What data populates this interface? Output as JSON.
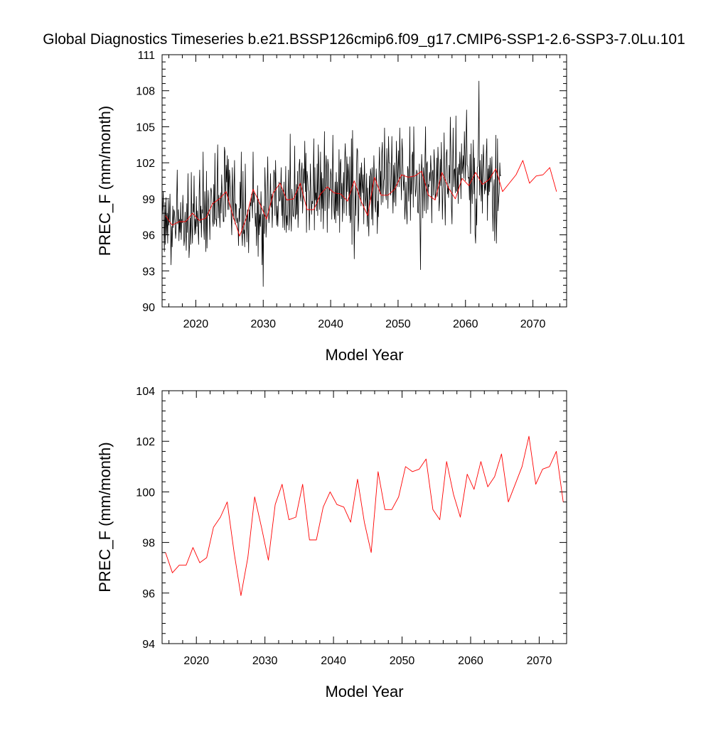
{
  "title": "Global Diagnostics Timeseries b.e21.BSSP126cmip6.f09_g17.CMIP6-SSP1-2.6-SSP3-7.0Lu.101",
  "colors": {
    "monthly": "#000000",
    "annual": "#ff0000",
    "axis": "#000000"
  },
  "chart_data": [
    {
      "type": "line",
      "xlabel": "Model Year",
      "ylabel": "PREC_F (mm/month)",
      "xlim": [
        2015,
        2075
      ],
      "ylim": [
        90,
        111
      ],
      "xticks": [
        2020,
        2030,
        2040,
        2050,
        2060,
        2070
      ],
      "yticks": [
        90,
        93,
        96,
        99,
        102,
        105,
        108,
        111
      ],
      "grid": false,
      "series": [
        {
          "line_color": "#000000",
          "resolution": "monthly",
          "x_start": 2015.0,
          "x_step": 0.0833333,
          "values": [
            97.5,
            98.2,
            99.6,
            96.9,
            94.6,
            98.7,
            95.2,
            99.1,
            96.0,
            97.8,
            95.3,
            98.9,
            96.8,
            97.6,
            99.4,
            96.1,
            93.5,
            96.7,
            95.0,
            98.4,
            96.6,
            98.1,
            97.9,
            97.0,
            95.7,
            96.4,
            98.9,
            101.4,
            96.9,
            98.1,
            95.5,
            97.3,
            96.2,
            98.7,
            95.6,
            97.3,
            97.0,
            99.3,
            97.5,
            95.1,
            95.6,
            97.9,
            96.3,
            94.7,
            98.6,
            96.2,
            101.1,
            97.7,
            94.1,
            95.2,
            97.4,
            95.2,
            101.2,
            96.8,
            95.3,
            98.6,
            97.9,
            100.9,
            96.0,
            97.3,
            96.1,
            99.2,
            96.7,
            98.0,
            96.4,
            95.2,
            99.7,
            101.4,
            97.0,
            98.4,
            95.8,
            98.1,
            97.8,
            102.9,
            96.7,
            95.6,
            99.6,
            97.7,
            94.6,
            101.3,
            94.9,
            98.2,
            99.7,
            97.6,
            97.7,
            95.6,
            99.5,
            99.9,
            99.6,
            98.4,
            97.2,
            96.7,
            100.2,
            96.9,
            102.8,
            97.3,
            97.3,
            96.7,
            100.5,
            103.5,
            97.4,
            99.3,
            98.0,
            96.6,
            99.5,
            97.8,
            101.0,
            99.4,
            98.6,
            97.1,
            97.1,
            103.3,
            102.9,
            97.5,
            101.8,
            100.4,
            102.6,
            98.1,
            102.3,
            98.1,
            101.4,
            100.7,
            99.9,
            97.4,
            96.0,
            101.6,
            99.4,
            97.3,
            100.1,
            102.2,
            96.9,
            98.6,
            98.5,
            97.0,
            97.4,
            96.9,
            95.1,
            98.2,
            97.1,
            100.4,
            98.2,
            102.9,
            96.0,
            95.1,
            101.3,
            96.1,
            96.4,
            95.0,
            101.9,
            97.7,
            97.5,
            95.4,
            98.1,
            97.1,
            94.5,
            98.1,
            97.1,
            98.7,
            98.4,
            99.4,
            98.7,
            97.4,
            102.9,
            98.7,
            99.5,
            98.4,
            96.7,
            97.8,
            95.1,
            97.8,
            100.1,
            94.2,
            99.0,
            96.0,
            97.7,
            96.7,
            99.6,
            97.7,
            93.5,
            97.7,
            91.7,
            98.4,
            96.1,
            101.6,
            99.6,
            95.8,
            97.1,
            99.7,
            102.5,
            98.3,
            97.0,
            97.5,
            99.0,
            101.1,
            98.3,
            99.4,
            96.6,
            98.7,
            100.1,
            101.4,
            101.1,
            97.6,
            102.2,
            99.7,
            96.8,
            98.4,
            96.7,
            98.5,
            100.4,
            98.8,
            98.9,
            99.6,
            101.6,
            97.6,
            99.7,
            96.6,
            99.1,
            100.4,
            96.4,
            97.9,
            101.7,
            96.2,
            97.6,
            96.8,
            99.0,
            101.4,
            96.4,
            98.0,
            104.4,
            97.8,
            96.3,
            99.8,
            99.1,
            97.6,
            97.5,
            98.9,
            103.4,
            97.3,
            97.7,
            100.2,
            97.7,
            101.3,
            96.6,
            98.3,
            101.8,
            102.3,
            99.3,
            98.8,
            101.3,
            102.0,
            97.8,
            99.2,
            101.5,
            100.3,
            103.8,
            99.6,
            102.8,
            96.2,
            101.3,
            100.8,
            99.8,
            99.6,
            96.4,
            98.3,
            101.9,
            99.6,
            97.7,
            98.8,
            98.6,
            100.7,
            104.0,
            96.4,
            101.6,
            98.9,
            99.5,
            98.0,
            101.9,
            97.6,
            103.5,
            101.4,
            98.1,
            99.5,
            102.9,
            97.1,
            101.2,
            98.2,
            100.7,
            96.5,
            100.5,
            104.6,
            98.0,
            101.1,
            102.6,
            100.7,
            96.2,
            102.3,
            101.8,
            98.2,
            99.9,
            99.7,
            101.5,
            101.0,
            97.3,
            100.2,
            104.3,
            100.0,
            98.0,
            97.3,
            100.4,
            97.0,
            101.2,
            98.0,
            100.4,
            97.6,
            98.9,
            103.1,
            96.2,
            101.9,
            102.3,
            99.0,
            100.3,
            97.1,
            99.8,
            101.2,
            97.8,
            102.1,
            103.6,
            101.8,
            97.6,
            102.5,
            99.6,
            101.9,
            101.0,
            97.6,
            102.5,
            97.0,
            97.4,
            104.0,
            95.2,
            104.7,
            100.4,
            98.8,
            94.0,
            97.7,
            100.1,
            97.6,
            101.4,
            103.2,
            103.0,
            96.3,
            97.4,
            101.1,
            99.2,
            101.6,
            98.4,
            102.0,
            100.5,
            99.5,
            101.0,
            96.9,
            102.4,
            100.4,
            98.4,
            99.2,
            101.1,
            96.7,
            99.9,
            97.4,
            95.9,
            100.9,
            98.9,
            101.5,
            101.0,
            97.3,
            101.6,
            96.8,
            99.6,
            102.6,
            100.6,
            98.5,
            97.9,
            101.5,
            100.5,
            96.1,
            98.8,
            97.5,
            101.3,
            103.3,
            99.4,
            101.3,
            98.5,
            102.8,
            103.7,
            98.7,
            100.4,
            100.7,
            104.9,
            100.2,
            99.4,
            98.9,
            103.2,
            101.3,
            98.2,
            104.2,
            102.0,
            102.0,
            99.8,
            99.3,
            101.1,
            104.2,
            100.0,
            97.8,
            101.8,
            98.7,
            102.0,
            100.1,
            98.4,
            103.8,
            102.1,
            100.0,
            101.6,
            103.0,
            100.0,
            104.9,
            101.9,
            100.7,
            98.9,
            104.0,
            103.0,
            101.0,
            99.7,
            101.0,
            97.3,
            98.5,
            100.4,
            98.1,
            96.9,
            101.7,
            101.4,
            98.8,
            100.5,
            105.0,
            97.2,
            100.8,
            99.4,
            102.6,
            102.9,
            98.3,
            105.0,
            101.5,
            100.7,
            99.2,
            99.8,
            101.4,
            101.2,
            97.9,
            97.8,
            99.6,
            101.9,
            97.2,
            93.1,
            99.7,
            102.7,
            101.1,
            97.4,
            101.6,
            100.7,
            98.0,
            102.4,
            105.0,
            97.8,
            101.9,
            102.1,
            98.1,
            100.2,
            100.0,
            101.2,
            100.5,
            102.6,
            101.4,
            97.0,
            101.2,
            101.4,
            99.3,
            103.1,
            101.8,
            98.9,
            99.4,
            100.1,
            102.4,
            99.2,
            103.3,
            101.9,
            98.0,
            98.9,
            102.3,
            100.1,
            103.7,
            100.5,
            97.3,
            99.8,
            100.5,
            104.5,
            99.4,
            96.8,
            101.3,
            102.8,
            103.1,
            99.4,
            99.9,
            99.1,
            101.8,
            100.3,
            105.8,
            103.0,
            98.3,
            96.9,
            101.5,
            104.9,
            100.0,
            101.4,
            101.5,
            99.5,
            105.9,
            99.7,
            99.6,
            101.6,
            98.6,
            101.9,
            101.0,
            102.9,
            101.6,
            99.0,
            103.6,
            101.1,
            101.7,
            102.6,
            100.7,
            104.6,
            102.6,
            100.5,
            103.7,
            106.4,
            101.8,
            101.7,
            100.7,
            100.8,
            98.9,
            102.7,
            96.1,
            103.6,
            100.3,
            98.6,
            101.2,
            103.9,
            99.4,
            102.4,
            96.1,
            95.3,
            99.0,
            96.8,
            101.6,
            101.7,
            103.9,
            108.8,
            99.3,
            102.2,
            100.6,
            98.8,
            102.7,
            97.8,
            101.6,
            103.5,
            101.3,
            99.4,
            100.3,
            99.7,
            102.7,
            104.0,
            97.2,
            101.5,
            99.3,
            101.8,
            99.6,
            102.4,
            100.4,
            100.9,
            102.5,
            98.3,
            96.3,
            99.9,
            100.6,
            95.5,
            98.4,
            104.3,
            95.3,
            97.8,
            104.0,
            98.0,
            98.9,
            99.5,
            102.0,
            100.9,
            101.0
          ]
        },
        {
          "line_color": "#ff0000",
          "resolution": "annual",
          "x": [
            2015.5,
            2016.5,
            2017.5,
            2018.5,
            2019.5,
            2020.5,
            2021.5,
            2022.5,
            2023.5,
            2024.5,
            2025.5,
            2026.5,
            2027.5,
            2028.5,
            2029.5,
            2030.5,
            2031.5,
            2032.5,
            2033.5,
            2034.5,
            2035.5,
            2036.5,
            2037.5,
            2038.5,
            2039.5,
            2040.5,
            2041.5,
            2042.5,
            2043.5,
            2044.5,
            2045.5,
            2046.5,
            2047.5,
            2048.5,
            2049.5,
            2050.5,
            2051.5,
            2052.5,
            2053.5,
            2054.5,
            2055.5,
            2056.5,
            2057.5,
            2058.5,
            2059.5,
            2060.5,
            2061.5,
            2062.5,
            2063.5,
            2064.5,
            2065.5,
            2066.5,
            2067.5,
            2068.5,
            2069.5,
            2070.5,
            2071.5,
            2072.5,
            2073.5
          ],
          "values": [
            97.6,
            96.8,
            97.1,
            97.1,
            97.8,
            97.2,
            97.4,
            98.6,
            99.0,
            99.6,
            97.6,
            95.9,
            97.4,
            99.8,
            98.6,
            97.3,
            99.5,
            100.3,
            98.9,
            99.0,
            100.3,
            98.1,
            98.1,
            99.4,
            100.0,
            99.5,
            99.4,
            98.8,
            100.5,
            98.8,
            97.6,
            100.8,
            99.3,
            99.3,
            99.8,
            101.0,
            100.8,
            100.9,
            101.3,
            99.3,
            98.9,
            101.2,
            99.9,
            99.0,
            100.7,
            100.1,
            101.2,
            100.2,
            100.6,
            101.5,
            99.6,
            100.3,
            101.0,
            102.2,
            100.3,
            100.9,
            101.0,
            101.6,
            99.6
          ]
        }
      ]
    },
    {
      "type": "line",
      "xlabel": "Model Year",
      "ylabel": "PREC_F (mm/month)",
      "xlim": [
        2015,
        2074
      ],
      "ylim": [
        94,
        104
      ],
      "xticks": [
        2020,
        2030,
        2040,
        2050,
        2060,
        2070
      ],
      "yticks": [
        94,
        96,
        98,
        100,
        102,
        104
      ],
      "grid": false,
      "series": [
        {
          "line_color": "#ff0000",
          "resolution": "annual",
          "x": [
            2015.5,
            2016.5,
            2017.5,
            2018.5,
            2019.5,
            2020.5,
            2021.5,
            2022.5,
            2023.5,
            2024.5,
            2025.5,
            2026.5,
            2027.5,
            2028.5,
            2029.5,
            2030.5,
            2031.5,
            2032.5,
            2033.5,
            2034.5,
            2035.5,
            2036.5,
            2037.5,
            2038.5,
            2039.5,
            2040.5,
            2041.5,
            2042.5,
            2043.5,
            2044.5,
            2045.5,
            2046.5,
            2047.5,
            2048.5,
            2049.5,
            2050.5,
            2051.5,
            2052.5,
            2053.5,
            2054.5,
            2055.5,
            2056.5,
            2057.5,
            2058.5,
            2059.5,
            2060.5,
            2061.5,
            2062.5,
            2063.5,
            2064.5,
            2065.5,
            2066.5,
            2067.5,
            2068.5,
            2069.5,
            2070.5,
            2071.5,
            2072.5,
            2073.5
          ],
          "values": [
            97.6,
            96.8,
            97.1,
            97.1,
            97.8,
            97.2,
            97.4,
            98.6,
            99.0,
            99.6,
            97.6,
            95.9,
            97.4,
            99.8,
            98.6,
            97.3,
            99.5,
            100.3,
            98.9,
            99.0,
            100.3,
            98.1,
            98.1,
            99.4,
            100.0,
            99.5,
            99.4,
            98.8,
            100.5,
            98.8,
            97.6,
            100.8,
            99.3,
            99.3,
            99.8,
            101.0,
            100.8,
            100.9,
            101.3,
            99.3,
            98.9,
            101.2,
            99.9,
            99.0,
            100.7,
            100.1,
            101.2,
            100.2,
            100.6,
            101.5,
            99.6,
            100.3,
            101.0,
            102.2,
            100.3,
            100.9,
            101.0,
            101.6,
            99.6
          ]
        }
      ]
    }
  ]
}
